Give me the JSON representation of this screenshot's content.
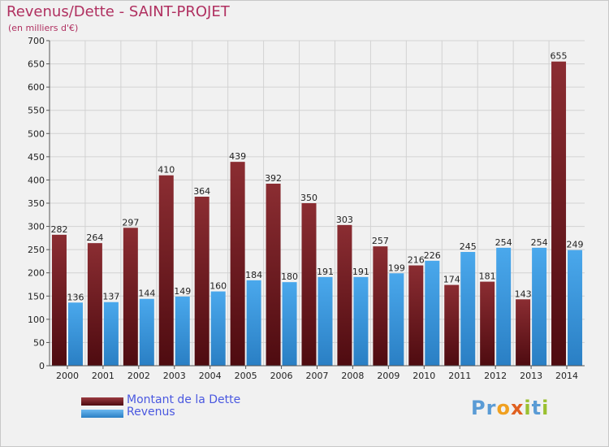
{
  "title": "Revenus/Dette - SAINT-PROJET",
  "subtitle": "(en milliers d'€)",
  "logo": {
    "text": "Proxiti",
    "letters": [
      {
        "ch": "P",
        "color": "#5a9bd5"
      },
      {
        "ch": "r",
        "color": "#5a9bd5"
      },
      {
        "ch": "o",
        "color": "#f0a020"
      },
      {
        "ch": "x",
        "color": "#e06020"
      },
      {
        "ch": "i",
        "color": "#9ac030"
      },
      {
        "ch": "t",
        "color": "#5a9bd5"
      },
      {
        "ch": "i",
        "color": "#9ac030"
      }
    ]
  },
  "legend": {
    "items": [
      {
        "label": "Montant de la Dette",
        "color": "#7b1f24"
      },
      {
        "label": "Revenus",
        "color": "#3d9be0"
      }
    ]
  },
  "chart_data": {
    "type": "bar",
    "title": "Revenus/Dette - SAINT-PROJET",
    "ylabel": "(en milliers d'€)",
    "categories": [
      "2000",
      "2001",
      "2002",
      "2003",
      "2004",
      "2005",
      "2006",
      "2007",
      "2008",
      "2009",
      "2010",
      "2011",
      "2012",
      "2013",
      "2014"
    ],
    "series": [
      {
        "name": "Montant de la Dette",
        "color": "#7b1f24",
        "values": [
          282,
          264,
          297,
          410,
          364,
          439,
          392,
          350,
          303,
          257,
          216,
          174,
          181,
          143,
          655
        ]
      },
      {
        "name": "Revenus",
        "color": "#3d9be0",
        "values": [
          136,
          137,
          144,
          149,
          160,
          184,
          180,
          191,
          191,
          199,
          226,
          245,
          254,
          254,
          249
        ]
      }
    ],
    "ylim": [
      0,
      700
    ],
    "yticks": [
      0,
      50,
      100,
      150,
      200,
      250,
      300,
      350,
      400,
      450,
      500,
      550,
      600,
      650,
      700
    ],
    "grid": true,
    "legend_position": "bottom-left"
  }
}
